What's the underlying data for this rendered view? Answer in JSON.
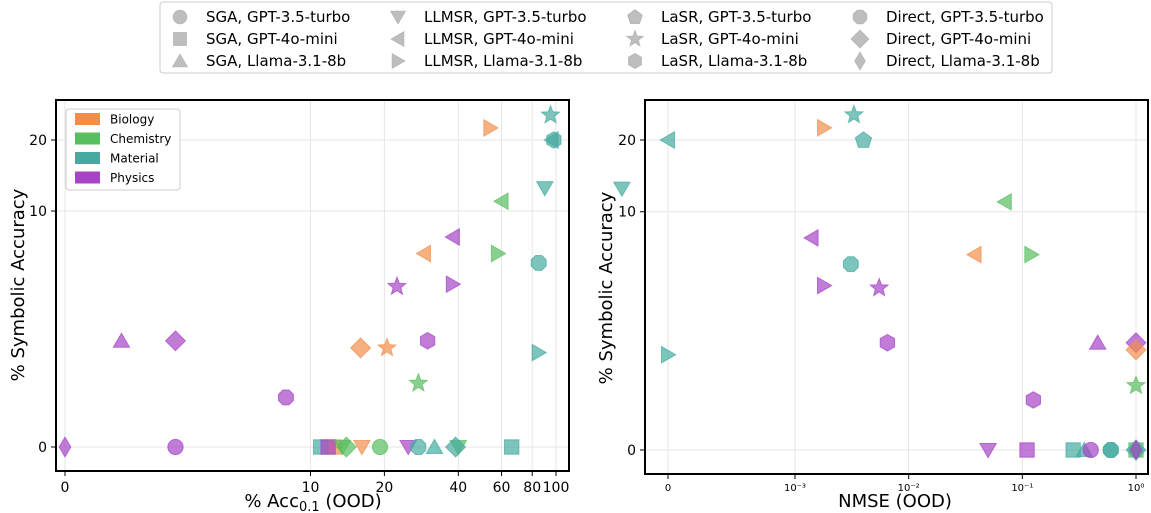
{
  "legend_top": [
    {
      "label": "SGA, GPT-3.5-turbo",
      "marker": "circle"
    },
    {
      "label": "SGA, GPT-4o-mini",
      "marker": "square"
    },
    {
      "label": "SGA, Llama-3.1-8b",
      "marker": "triangle-up"
    },
    {
      "label": "LLMSR, GPT-3.5-turbo",
      "marker": "triangle-down"
    },
    {
      "label": "LLMSR, GPT-4o-mini",
      "marker": "triangle-left"
    },
    {
      "label": "LLMSR, Llama-3.1-8b",
      "marker": "triangle-right"
    },
    {
      "label": "LaSR, GPT-3.5-turbo",
      "marker": "pentagon"
    },
    {
      "label": "LaSR, GPT-4o-mini",
      "marker": "star"
    },
    {
      "label": "LaSR, Llama-3.1-8b",
      "marker": "hexagon"
    },
    {
      "label": "Direct, GPT-3.5-turbo",
      "marker": "octagon"
    },
    {
      "label": "Direct, GPT-4o-mini",
      "marker": "diamond"
    },
    {
      "label": "Direct, Llama-3.1-8b",
      "marker": "thin-diamond"
    }
  ],
  "domains": [
    {
      "name": "Biology",
      "color": "#f28e4b"
    },
    {
      "name": "Chemistry",
      "color": "#59be5f"
    },
    {
      "name": "Material",
      "color": "#45aba0"
    },
    {
      "name": "Physics",
      "color": "#a545c4"
    }
  ],
  "chart_data": [
    {
      "type": "scatter",
      "xlabel_main": "% Acc",
      "xlabel_sub": "0.1",
      "xlabel_suffix": " (OOD)",
      "ylabel": "% Symbolic Accuracy",
      "x_scale": "symlog",
      "y_scale": "symlog",
      "xticks": [
        0,
        10,
        20,
        40,
        60,
        80,
        100
      ],
      "yticks": [
        0,
        10,
        20
      ],
      "grid": true,
      "legend_position": "top-left",
      "points": [
        {
          "m": "triangle-right",
          "d": "Biology",
          "x": 54,
          "y": 22.5
        },
        {
          "m": "star",
          "d": "Material",
          "x": 95,
          "y": 25.5
        },
        {
          "m": "triangle-left",
          "d": "Material",
          "x": 96,
          "y": 20
        },
        {
          "m": "hexagon",
          "d": "Material",
          "x": 98,
          "y": 20
        },
        {
          "m": "triangle-down",
          "d": "Material",
          "x": 90,
          "y": 12.5
        },
        {
          "m": "triangle-left",
          "d": "Chemistry",
          "x": 60,
          "y": 11
        },
        {
          "m": "triangle-left",
          "d": "Physics",
          "x": 38,
          "y": 8.9
        },
        {
          "m": "triangle-left",
          "d": "Biology",
          "x": 29,
          "y": 8.2
        },
        {
          "m": "triangle-right",
          "d": "Chemistry",
          "x": 58,
          "y": 8.2
        },
        {
          "m": "octagon",
          "d": "Material",
          "x": 85,
          "y": 7.8
        },
        {
          "m": "star",
          "d": "Physics",
          "x": 22.5,
          "y": 6.8
        },
        {
          "m": "triangle-right",
          "d": "Physics",
          "x": 38,
          "y": 6.9
        },
        {
          "m": "triangle-up",
          "d": "Physics",
          "x": 2.3,
          "y": 4.5
        },
        {
          "m": "diamond",
          "d": "Physics",
          "x": 4.5,
          "y": 4.5
        },
        {
          "m": "hexagon",
          "d": "Physics",
          "x": 30,
          "y": 4.5
        },
        {
          "m": "diamond",
          "d": "Biology",
          "x": 16,
          "y": 4.2
        },
        {
          "m": "star",
          "d": "Biology",
          "x": 20.5,
          "y": 4.2
        },
        {
          "m": "triangle-right",
          "d": "Material",
          "x": 85,
          "y": 4
        },
        {
          "m": "star",
          "d": "Chemistry",
          "x": 27.5,
          "y": 2.7
        },
        {
          "m": "octagon",
          "d": "Physics",
          "x": 9,
          "y": 2.1
        },
        {
          "m": "thin-diamond",
          "d": "Physics",
          "x": 0,
          "y": 0
        },
        {
          "m": "circle",
          "d": "Physics",
          "x": 4.5,
          "y": 0
        },
        {
          "m": "square",
          "d": "Material",
          "x": 11,
          "y": 0
        },
        {
          "m": "square",
          "d": "Biology",
          "x": 12.5,
          "y": 0
        },
        {
          "m": "square",
          "d": "Physics",
          "x": 11.8,
          "y": 0
        },
        {
          "m": "triangle-down",
          "d": "Chemistry",
          "x": 13.5,
          "y": 0
        },
        {
          "m": "diamond",
          "d": "Chemistry",
          "x": 14,
          "y": 0
        },
        {
          "m": "triangle-down",
          "d": "Biology",
          "x": 16.2,
          "y": 0
        },
        {
          "m": "circle",
          "d": "Chemistry",
          "x": 19.2,
          "y": 0
        },
        {
          "m": "triangle-down",
          "d": "Physics",
          "x": 25,
          "y": 0
        },
        {
          "m": "octagon",
          "d": "Material",
          "x": 27.5,
          "y": 0
        },
        {
          "m": "triangle-up",
          "d": "Material",
          "x": 32,
          "y": 0
        },
        {
          "m": "triangle-down",
          "d": "Chemistry",
          "x": 40,
          "y": 0
        },
        {
          "m": "diamond",
          "d": "Material",
          "x": 39,
          "y": 0
        },
        {
          "m": "square",
          "d": "Material",
          "x": 66,
          "y": 0
        }
      ]
    },
    {
      "type": "scatter",
      "xlabel": "NMSE (OOD)",
      "ylabel": "% Symbolic Accuracy",
      "x_scale": "symlog",
      "y_scale": "symlog",
      "xticks": [
        "0",
        "10⁻³",
        "10⁻²",
        "10⁻¹",
        "10⁰"
      ],
      "yticks": [
        0,
        10,
        20
      ],
      "grid": true,
      "points": [
        {
          "m": "triangle-right",
          "d": "Biology",
          "x": 0.0018,
          "y": 22.5
        },
        {
          "m": "star",
          "d": "Material",
          "x": 0.0033,
          "y": 25.5
        },
        {
          "m": "pentagon",
          "d": "Material",
          "x": 0.004,
          "y": 20
        },
        {
          "m": "triangle-left",
          "d": "Material",
          "x": 0,
          "y": 20
        },
        {
          "m": "triangle-down",
          "d": "Material",
          "x": 3e-05,
          "y": 12.5
        },
        {
          "m": "triangle-left",
          "d": "Chemistry",
          "x": 0.07,
          "y": 11
        },
        {
          "m": "triangle-left",
          "d": "Physics",
          "x": 0.0014,
          "y": 8.9
        },
        {
          "m": "triangle-left",
          "d": "Biology",
          "x": 0.038,
          "y": 8.2
        },
        {
          "m": "triangle-right",
          "d": "Chemistry",
          "x": 0.12,
          "y": 8.2
        },
        {
          "m": "octagon",
          "d": "Material",
          "x": 0.0031,
          "y": 7.8
        },
        {
          "m": "triangle-right",
          "d": "Physics",
          "x": 0.0018,
          "y": 6.9
        },
        {
          "m": "star",
          "d": "Physics",
          "x": 0.0055,
          "y": 6.8
        },
        {
          "m": "hexagon",
          "d": "Physics",
          "x": 0.0065,
          "y": 4.5
        },
        {
          "m": "triangle-up",
          "d": "Physics",
          "x": 0.46,
          "y": 4.5
        },
        {
          "m": "diamond",
          "d": "Physics",
          "x": 1.0,
          "y": 4.5
        },
        {
          "m": "diamond",
          "d": "Biology",
          "x": 1.0,
          "y": 4.2
        },
        {
          "m": "triangle-right",
          "d": "Material",
          "x": 0,
          "y": 4
        },
        {
          "m": "star",
          "d": "Chemistry",
          "x": 1.0,
          "y": 2.7
        },
        {
          "m": "hexagon",
          "d": "Physics",
          "x": 0.125,
          "y": 2.1
        },
        {
          "m": "triangle-down",
          "d": "Physics",
          "x": 0.05,
          "y": 0
        },
        {
          "m": "square",
          "d": "Physics",
          "x": 0.11,
          "y": 0
        },
        {
          "m": "square",
          "d": "Material",
          "x": 0.28,
          "y": 0
        },
        {
          "m": "triangle-up",
          "d": "Material",
          "x": 0.35,
          "y": 0
        },
        {
          "m": "circle",
          "d": "Physics",
          "x": 0.4,
          "y": 0
        },
        {
          "m": "octagon",
          "d": "Material",
          "x": 0.6,
          "y": 0
        },
        {
          "m": "circle",
          "d": "Material",
          "x": 0.6,
          "y": 0
        },
        {
          "m": "square",
          "d": "Chemistry",
          "x": 1.0,
          "y": 0
        },
        {
          "m": "diamond",
          "d": "Material",
          "x": 1.0,
          "y": 0
        },
        {
          "m": "thin-diamond",
          "d": "Physics",
          "x": 1.0,
          "y": 0
        }
      ]
    }
  ]
}
